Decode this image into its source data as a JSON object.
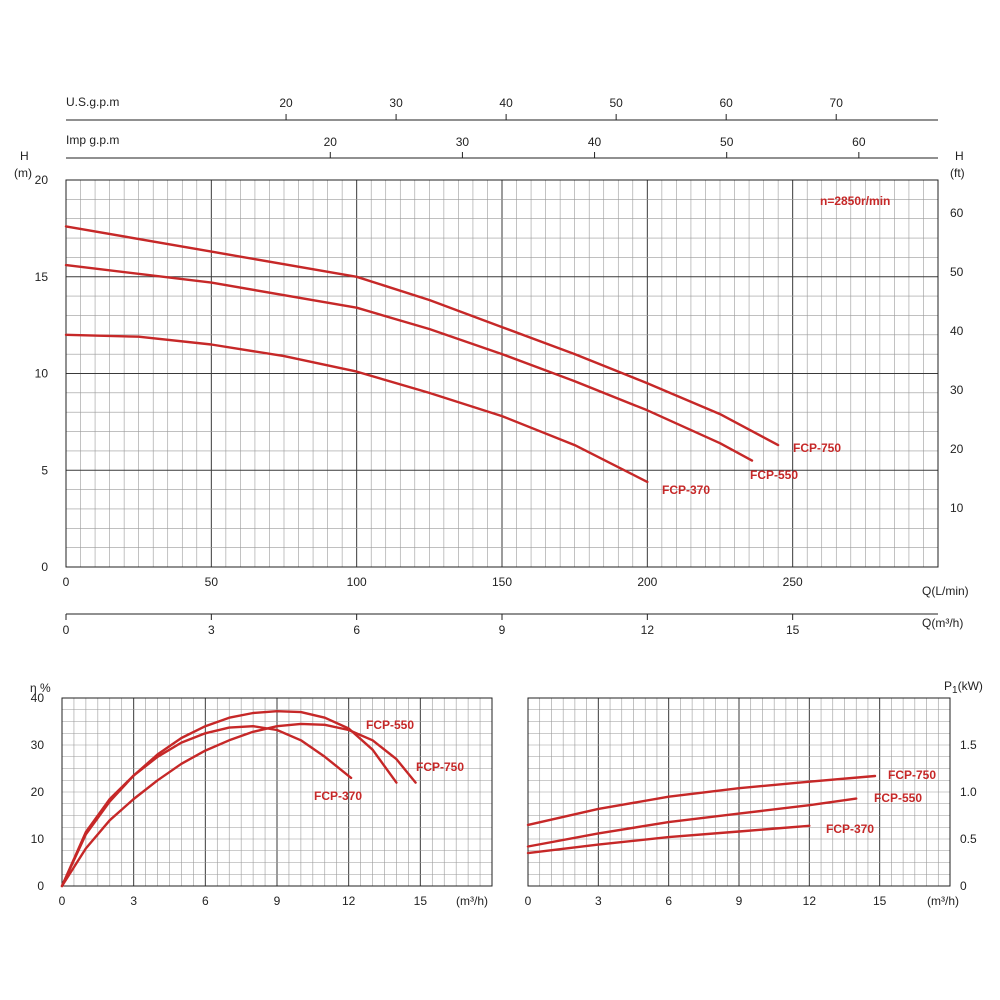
{
  "chart_data": [
    {
      "type": "line",
      "speed_label": "n=2850r/min",
      "ylabel_left": "H",
      "ylabel_left_unit": "(m)",
      "ylabel_right": "H",
      "ylabel_right_unit": "(ft)",
      "xlabel": "Q(L/min)",
      "xlabel_secondary": "Q(m³/h)",
      "top_axis_1_label": "U.S.g.p.m",
      "top_axis_2_label": "Imp g.p.m",
      "xlim": [
        0,
        300
      ],
      "ylim": [
        0,
        20
      ],
      "x_ticks": [
        "0",
        "50",
        "100",
        "150",
        "200",
        "250"
      ],
      "y_ticks": [
        "0",
        "5",
        "10",
        "15",
        "20"
      ],
      "right_ticks": [
        "10",
        "20",
        "30",
        "40",
        "50",
        "60"
      ],
      "m3h_ticks": [
        "0",
        "3",
        "6",
        "9",
        "12",
        "15"
      ],
      "usgpm_ticks": [
        "20",
        "30",
        "40",
        "50",
        "60",
        "70"
      ],
      "impgpm_ticks": [
        "20",
        "30",
        "40",
        "50",
        "60"
      ],
      "color": "#c62828",
      "series": [
        {
          "name": "FCP-750",
          "x": [
            0,
            50,
            100,
            125,
            150,
            175,
            200,
            225,
            245
          ],
          "y": [
            17.6,
            16.3,
            15.0,
            13.8,
            12.4,
            11.0,
            9.5,
            7.9,
            6.3
          ]
        },
        {
          "name": "FCP-550",
          "x": [
            0,
            50,
            100,
            125,
            150,
            175,
            200,
            225,
            236
          ],
          "y": [
            15.6,
            14.7,
            13.4,
            12.3,
            11.0,
            9.6,
            8.1,
            6.4,
            5.5
          ]
        },
        {
          "name": "FCP-370",
          "x": [
            0,
            25,
            50,
            75,
            100,
            125,
            150,
            175,
            200
          ],
          "y": [
            12.0,
            11.9,
            11.5,
            10.9,
            10.1,
            9.0,
            7.8,
            6.3,
            4.4
          ]
        }
      ]
    },
    {
      "type": "line",
      "ylabel": "η %",
      "xlabel": "(m³/h)",
      "xlim": [
        0,
        18
      ],
      "ylim": [
        0,
        40
      ],
      "x_ticks": [
        "0",
        "3",
        "6",
        "9",
        "12",
        "15"
      ],
      "y_ticks": [
        "0",
        "10",
        "20",
        "30",
        "40"
      ],
      "color": "#c62828",
      "series": [
        {
          "name": "FCP-550",
          "x": [
            0,
            1,
            2,
            3,
            4,
            5,
            6,
            7,
            8,
            9,
            10,
            11,
            12,
            13,
            14
          ],
          "y": [
            0,
            11,
            18,
            23.5,
            28,
            31.5,
            34,
            35.8,
            36.8,
            37.2,
            37.0,
            35.8,
            33.5,
            29,
            22
          ]
        },
        {
          "name": "FCP-750",
          "x": [
            0,
            1,
            2,
            3,
            4,
            5,
            6,
            7,
            8,
            9,
            10,
            11,
            12,
            13,
            14,
            14.8
          ],
          "y": [
            0,
            8,
            14,
            18.5,
            22.5,
            26,
            28.8,
            31,
            32.8,
            34,
            34.5,
            34.3,
            33.2,
            31,
            27,
            22
          ]
        },
        {
          "name": "FCP-370",
          "x": [
            0,
            1,
            2,
            3,
            4,
            5,
            6,
            7,
            8,
            9,
            10,
            11,
            12.1
          ],
          "y": [
            0,
            11.5,
            18.5,
            23.5,
            27.5,
            30.5,
            32.5,
            33.7,
            34,
            33.2,
            31,
            27.5,
            23
          ]
        }
      ]
    },
    {
      "type": "line",
      "ylabel": "P",
      "ylabel_sub": "1",
      "ylabel_unit": "(kW)",
      "xlabel": "(m³/h)",
      "xlim": [
        0,
        18
      ],
      "ylim": [
        0,
        2
      ],
      "x_ticks": [
        "0",
        "3",
        "6",
        "9",
        "12",
        "15"
      ],
      "y_ticks": [
        "0",
        "0.5",
        "1.0",
        "1.5"
      ],
      "color": "#c62828",
      "series": [
        {
          "name": "FCP-750",
          "x": [
            0,
            3,
            6,
            9,
            12,
            14.8
          ],
          "y": [
            0.65,
            0.82,
            0.95,
            1.04,
            1.11,
            1.17
          ]
        },
        {
          "name": "FCP-550",
          "x": [
            0,
            3,
            6,
            9,
            12,
            14
          ],
          "y": [
            0.42,
            0.56,
            0.68,
            0.77,
            0.86,
            0.93
          ]
        },
        {
          "name": "FCP-370",
          "x": [
            0,
            3,
            6,
            9,
            12
          ],
          "y": [
            0.35,
            0.44,
            0.52,
            0.58,
            0.64
          ]
        }
      ]
    }
  ]
}
